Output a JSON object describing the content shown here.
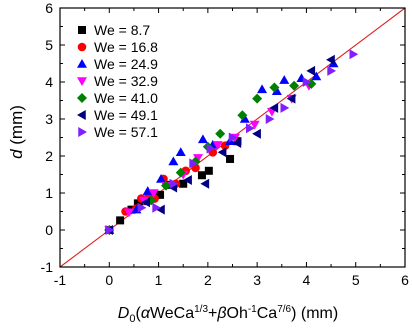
{
  "chart_data": {
    "type": "scatter",
    "xlabel": {
      "main": "D",
      "sub0": "0",
      "part1": "(",
      "alpha": "α",
      "part2": "WeCa",
      "sup1": "1/3",
      "plus": "+",
      "beta": "β",
      "part3": "Oh",
      "sup2": "-1",
      "part4": "Ca",
      "sup3": "7/6",
      "part5": ") (mm)"
    },
    "ylabel": {
      "var": "d",
      "unit": " (mm)"
    },
    "xlim": [
      -1,
      6
    ],
    "ylim": [
      -1,
      6
    ],
    "xticks": [
      "-1",
      "0",
      "1",
      "2",
      "3",
      "4",
      "5",
      "6"
    ],
    "yticks": [
      "-1",
      "0",
      "1",
      "2",
      "3",
      "4",
      "5",
      "6"
    ],
    "legend_position": "top-left",
    "reference_line": {
      "x": [
        -1,
        6
      ],
      "y": [
        -1,
        6
      ],
      "color": "#e02020"
    },
    "series": [
      {
        "name": "We = 8.7",
        "marker": "square",
        "color": "#000000",
        "x": [
          0.0,
          0.22,
          0.45,
          0.58,
          0.72,
          0.95,
          1.03,
          1.22,
          1.5,
          1.88,
          2.02,
          2.45,
          2.6
        ],
        "y": [
          0.0,
          0.26,
          0.55,
          0.72,
          0.78,
          0.95,
          0.95,
          1.22,
          1.25,
          1.48,
          1.6,
          1.92,
          2.4
        ]
      },
      {
        "name": "We = 16.8",
        "marker": "circle",
        "color": "#ff0000",
        "x": [
          0.0,
          0.33,
          0.55,
          0.65,
          0.8,
          0.92,
          1.1,
          1.35,
          1.55,
          1.75,
          2.1,
          2.35
        ],
        "y": [
          0.0,
          0.5,
          0.58,
          0.85,
          0.95,
          0.85,
          1.38,
          1.25,
          1.6,
          1.68,
          2.1,
          2.28
        ]
      },
      {
        "name": "We = 24.9",
        "marker": "triangle-up",
        "color": "#0000ff",
        "x": [
          0.0,
          0.55,
          0.78,
          1.05,
          1.3,
          1.45,
          1.9,
          2.1,
          2.45,
          2.75,
          3.1,
          3.4,
          3.55,
          3.9,
          4.2,
          4.55
        ],
        "y": [
          0.0,
          0.55,
          1.05,
          1.38,
          1.85,
          2.1,
          2.45,
          2.3,
          2.4,
          3.0,
          3.8,
          3.75,
          4.05,
          4.1,
          4.15,
          4.5
        ]
      },
      {
        "name": "We = 32.9",
        "marker": "triangle-down",
        "color": "#ff00ff",
        "x": [
          0.0,
          0.4,
          0.7,
          0.9,
          1.15,
          1.5,
          1.8,
          2.2,
          2.55,
          2.95,
          3.3,
          3.7,
          4.05
        ],
        "y": [
          0.0,
          0.48,
          0.8,
          1.0,
          1.2,
          1.5,
          1.95,
          2.3,
          2.5,
          2.85,
          3.2,
          3.55,
          3.9
        ]
      },
      {
        "name": "We = 41.0",
        "marker": "diamond",
        "color": "#008000",
        "x": [
          0.0,
          0.85,
          1.15,
          1.45,
          1.75,
          2.0,
          2.25,
          2.7,
          3.0,
          3.35,
          3.75,
          4.1
        ],
        "y": [
          0.0,
          0.8,
          1.2,
          1.55,
          1.85,
          2.25,
          2.6,
          3.1,
          3.55,
          3.85,
          3.9,
          3.95
        ]
      },
      {
        "name": "We = 49.1",
        "marker": "triangle-left",
        "color": "#000080",
        "x": [
          0.0,
          0.75,
          1.05,
          1.3,
          1.6,
          1.95,
          2.3,
          2.6,
          3.0,
          3.35,
          3.7,
          4.1,
          4.5
        ],
        "y": [
          0.0,
          0.75,
          0.55,
          1.15,
          1.35,
          1.25,
          2.1,
          2.35,
          2.6,
          3.3,
          3.55,
          4.3,
          4.6
        ]
      },
      {
        "name": "We = 57.1",
        "marker": "triangle-right",
        "color": "#8020ff",
        "x": [
          0.0,
          0.65,
          0.95,
          1.3,
          1.7,
          2.05,
          2.5,
          2.85,
          3.25,
          3.55,
          4.0,
          4.5,
          4.95
        ],
        "y": [
          0.0,
          0.6,
          0.6,
          1.25,
          1.8,
          2.2,
          2.5,
          2.75,
          3.0,
          3.3,
          4.0,
          4.3,
          4.75
        ]
      }
    ]
  }
}
